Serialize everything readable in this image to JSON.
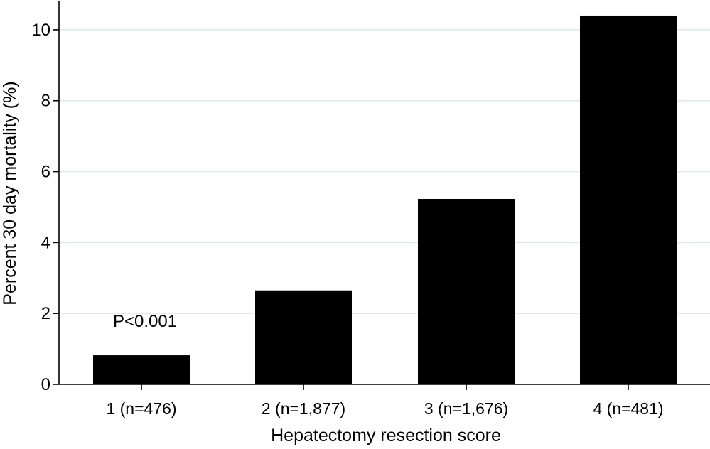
{
  "chart_data": {
    "type": "bar",
    "title": "",
    "xlabel": "Hepatectomy resection score",
    "ylabel": "Percent 30 day mortality (%)",
    "categories": [
      "1 (n=476)",
      "2 (n=1,877)",
      "3 (n=1,676)",
      "4 (n=481)"
    ],
    "values": [
      0.82,
      2.65,
      5.23,
      10.4
    ],
    "ylim": [
      0,
      10.8
    ],
    "yticks": [
      0,
      2,
      4,
      6,
      8,
      10
    ],
    "ytick_labels": [
      "0",
      "2",
      "4",
      "6",
      "8",
      "10"
    ],
    "grid": true,
    "legend": "none",
    "annotations": [
      {
        "text": "P<0.001",
        "category_index": 0
      }
    ],
    "colors": {
      "bar": "#000000",
      "grid": "#dce9ea",
      "axis": "#000000",
      "background": "#ffffff"
    }
  }
}
